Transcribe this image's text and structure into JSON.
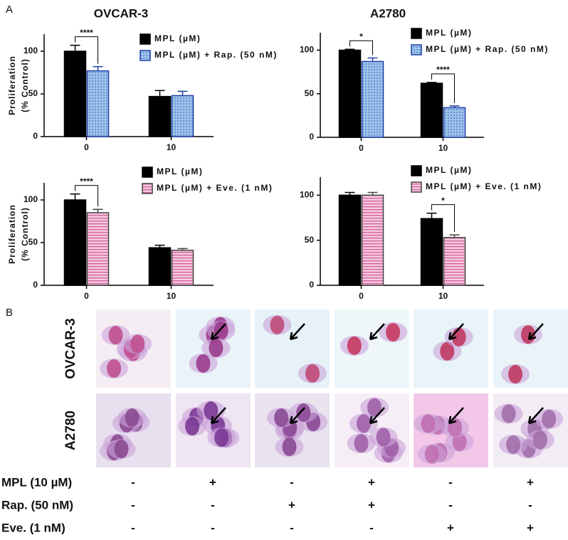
{
  "panel_labels": [
    "A",
    "B"
  ],
  "chart_data": [
    {
      "type": "bar",
      "title": "OVCAR-3",
      "y_label": [
        "Proliferation",
        "(% Control)"
      ],
      "categories": [
        "0",
        "10"
      ],
      "ylim": [
        0,
        120
      ],
      "yticks": [
        0,
        50,
        100
      ],
      "series": [
        {
          "name": "MPL (µM)",
          "color": "#000000",
          "edge": "#000000",
          "pattern": "solid",
          "values": [
            100,
            47
          ],
          "errors": [
            7,
            7
          ]
        },
        {
          "name": "MPL (µM) + Rap. (50 nM)",
          "color": "#9ec3ea",
          "edge": "#1f3fa8",
          "pattern": "dots",
          "values": [
            77,
            48
          ],
          "errors": [
            5,
            5
          ]
        }
      ],
      "annotations": [
        {
          "text": "****",
          "category": "0"
        }
      ]
    },
    {
      "type": "bar",
      "title": "A2780",
      "categories": [
        "0",
        "10"
      ],
      "ylim": [
        0,
        120
      ],
      "yticks": [
        0,
        50,
        100
      ],
      "series": [
        {
          "name": "MPL (µM)",
          "color": "#000000",
          "edge": "#000000",
          "pattern": "solid",
          "values": [
            100,
            62
          ],
          "errors": [
            1,
            1
          ]
        },
        {
          "name": "MPL (µM) + Rap. (50 nM)",
          "color": "#9ec3ea",
          "edge": "#1f3fa8",
          "pattern": "dots",
          "values": [
            87,
            34
          ],
          "errors": [
            4,
            2
          ]
        }
      ],
      "annotations": [
        {
          "text": "*",
          "category": "0"
        },
        {
          "text": "****",
          "category": "10"
        }
      ]
    },
    {
      "type": "bar",
      "y_label": [
        "Proliferation",
        "(% Control)"
      ],
      "categories": [
        "0",
        "10"
      ],
      "ylim": [
        0,
        120
      ],
      "yticks": [
        0,
        50,
        100
      ],
      "series": [
        {
          "name": "MPL (µM)",
          "color": "#000000",
          "edge": "#000000",
          "pattern": "solid",
          "values": [
            100,
            44
          ],
          "errors": [
            7,
            3
          ]
        },
        {
          "name": "MPL (µM) + Eve. (1 nM)",
          "color": "#f2a7cc",
          "edge": "#444444",
          "pattern": "stripes",
          "values": [
            85,
            41
          ],
          "errors": [
            4,
            2
          ]
        }
      ],
      "annotations": [
        {
          "text": "****",
          "category": "0"
        }
      ]
    },
    {
      "type": "bar",
      "categories": [
        "0",
        "10"
      ],
      "ylim": [
        0,
        120
      ],
      "yticks": [
        0,
        50,
        100
      ],
      "series": [
        {
          "name": "MPL (µM)",
          "color": "#000000",
          "edge": "#000000",
          "pattern": "solid",
          "values": [
            100,
            74
          ],
          "errors": [
            3,
            6
          ]
        },
        {
          "name": "MPL (µM) + Eve. (1 nM)",
          "color": "#f2a7cc",
          "edge": "#444444",
          "pattern": "stripes",
          "values": [
            100,
            53
          ],
          "errors": [
            3,
            3
          ]
        }
      ],
      "annotations": [
        {
          "text": "*",
          "category": "10"
        }
      ]
    }
  ],
  "panel_b": {
    "row_labels": [
      "OVCAR-3",
      "A2780"
    ],
    "treatments": [
      [
        "MPL (10 µM)",
        "-",
        "+",
        "-",
        "+",
        "-",
        "+"
      ],
      [
        "Rap. (50 nM)",
        "-",
        "-",
        "+",
        "+",
        "-",
        "-"
      ],
      [
        "Eve. (1 nM)",
        "-",
        "-",
        "-",
        "-",
        "+",
        "+"
      ]
    ]
  }
}
